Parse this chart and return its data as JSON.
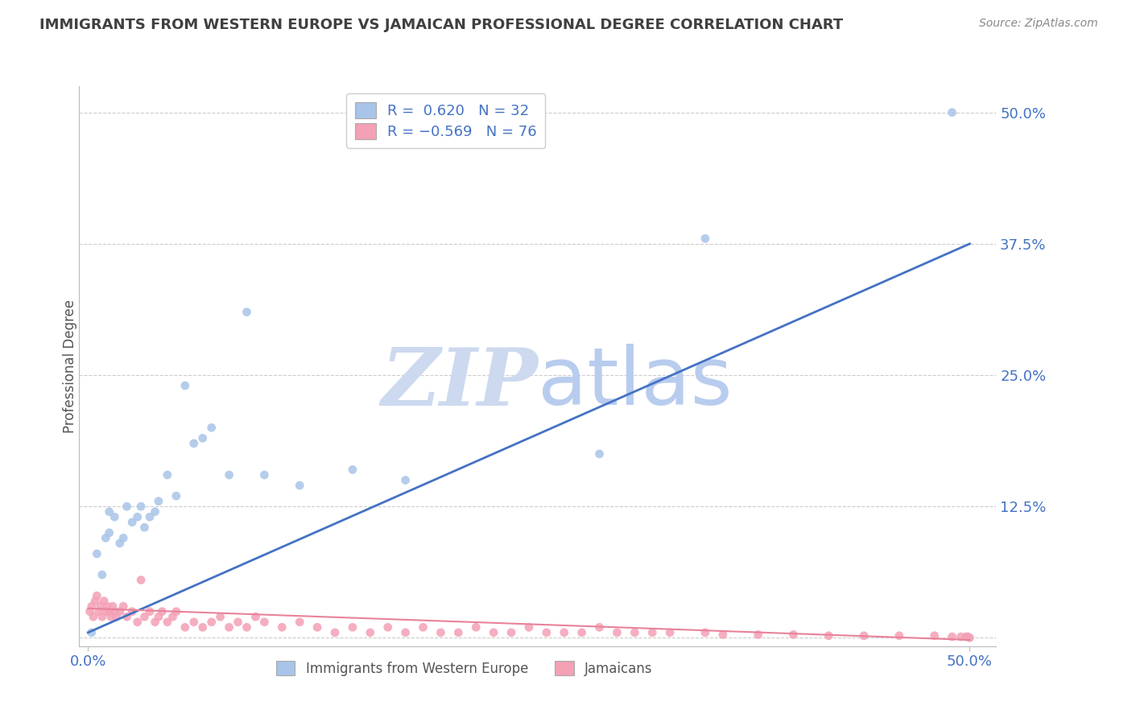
{
  "title": "IMMIGRANTS FROM WESTERN EUROPE VS JAMAICAN PROFESSIONAL DEGREE CORRELATION CHART",
  "source": "Source: ZipAtlas.com",
  "ylabel": "Professional Degree",
  "x_min": 0.0,
  "x_max": 0.5,
  "y_min": -0.008,
  "y_max": 0.525,
  "blue_R": 0.62,
  "blue_N": 32,
  "pink_R": -0.569,
  "pink_N": 76,
  "blue_color": "#a8c4e8",
  "blue_line_color": "#4472c4",
  "pink_color": "#f4a0b5",
  "pink_line_color": "#e8829a",
  "grid_color": "#cccccc",
  "title_color": "#404040",
  "axis_label_color": "#555555",
  "tick_label_color": "#4472c4",
  "blue_x": [
    0.002,
    0.005,
    0.008,
    0.01,
    0.012,
    0.012,
    0.015,
    0.018,
    0.02,
    0.022,
    0.025,
    0.028,
    0.03,
    0.032,
    0.035,
    0.038,
    0.04,
    0.045,
    0.05,
    0.055,
    0.06,
    0.065,
    0.07,
    0.08,
    0.09,
    0.1,
    0.12,
    0.15,
    0.18,
    0.29,
    0.35,
    0.49
  ],
  "blue_y": [
    0.005,
    0.08,
    0.06,
    0.095,
    0.1,
    0.12,
    0.115,
    0.09,
    0.095,
    0.125,
    0.11,
    0.115,
    0.125,
    0.105,
    0.115,
    0.12,
    0.13,
    0.155,
    0.135,
    0.24,
    0.185,
    0.19,
    0.2,
    0.155,
    0.31,
    0.155,
    0.145,
    0.16,
    0.15,
    0.175,
    0.38,
    0.5
  ],
  "pink_x": [
    0.001,
    0.002,
    0.003,
    0.004,
    0.005,
    0.006,
    0.007,
    0.008,
    0.009,
    0.01,
    0.011,
    0.012,
    0.013,
    0.014,
    0.015,
    0.016,
    0.018,
    0.02,
    0.022,
    0.025,
    0.028,
    0.03,
    0.032,
    0.035,
    0.038,
    0.04,
    0.042,
    0.045,
    0.048,
    0.05,
    0.055,
    0.06,
    0.065,
    0.07,
    0.075,
    0.08,
    0.085,
    0.09,
    0.095,
    0.1,
    0.11,
    0.12,
    0.13,
    0.14,
    0.15,
    0.16,
    0.17,
    0.18,
    0.19,
    0.2,
    0.21,
    0.22,
    0.23,
    0.24,
    0.25,
    0.26,
    0.27,
    0.28,
    0.29,
    0.3,
    0.31,
    0.32,
    0.33,
    0.35,
    0.36,
    0.38,
    0.4,
    0.42,
    0.44,
    0.46,
    0.48,
    0.49,
    0.495,
    0.498,
    0.499,
    0.5
  ],
  "pink_y": [
    0.025,
    0.03,
    0.02,
    0.035,
    0.04,
    0.025,
    0.03,
    0.02,
    0.035,
    0.025,
    0.03,
    0.025,
    0.02,
    0.03,
    0.025,
    0.02,
    0.025,
    0.03,
    0.02,
    0.025,
    0.015,
    0.055,
    0.02,
    0.025,
    0.015,
    0.02,
    0.025,
    0.015,
    0.02,
    0.025,
    0.01,
    0.015,
    0.01,
    0.015,
    0.02,
    0.01,
    0.015,
    0.01,
    0.02,
    0.015,
    0.01,
    0.015,
    0.01,
    0.005,
    0.01,
    0.005,
    0.01,
    0.005,
    0.01,
    0.005,
    0.005,
    0.01,
    0.005,
    0.005,
    0.01,
    0.005,
    0.005,
    0.005,
    0.01,
    0.005,
    0.005,
    0.005,
    0.005,
    0.005,
    0.003,
    0.003,
    0.003,
    0.002,
    0.002,
    0.002,
    0.002,
    0.001,
    0.001,
    0.001,
    0.001,
    0.0
  ],
  "blue_line_x": [
    0.0,
    0.5
  ],
  "blue_line_y": [
    0.005,
    0.375
  ],
  "pink_line_x": [
    0.0,
    0.5
  ],
  "pink_line_y": [
    0.028,
    -0.002
  ]
}
